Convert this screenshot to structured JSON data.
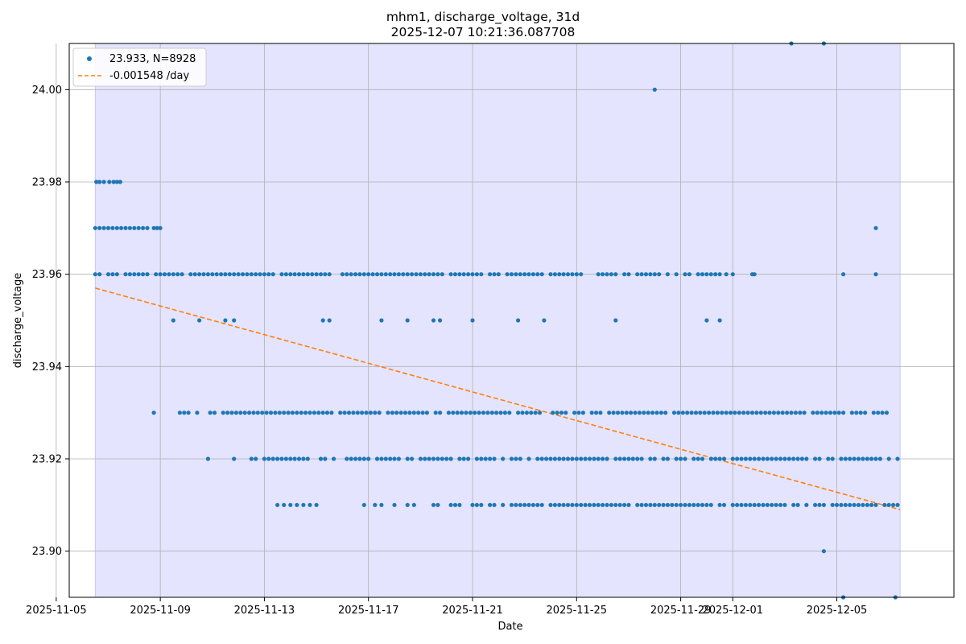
{
  "chart_data": {
    "type": "scatter",
    "title": "mhm1, discharge_voltage, 31d",
    "subtitle": "2025-12-07 10:21:36.087708",
    "xlabel": "Date",
    "ylabel": "discharge_voltage",
    "x_range": [
      "2025-11-05 12:00",
      "2025-12-09 12:00"
    ],
    "ylim": [
      23.89,
      24.01
    ],
    "x_ticks": [
      "2025-11-05",
      "2025-11-09",
      "2025-11-13",
      "2025-11-17",
      "2025-11-21",
      "2025-11-25",
      "2025-11-29",
      "2025-12-01",
      "2025-12-05"
    ],
    "y_ticks": [
      "23.90",
      "23.92",
      "23.94",
      "23.96",
      "23.98",
      "24.00"
    ],
    "grid": true,
    "legend_position": "top-left",
    "highlight_span": [
      "2025-11-06 12:00",
      "2025-12-07 10:21"
    ],
    "colors": {
      "points": "#1f77b4",
      "trend": "#ff7f0e",
      "span": "#e4e4fe",
      "span_edge": "#c8c8f0",
      "grid": "#b0b0b0"
    },
    "series": [
      {
        "name": "23.933, N=8928",
        "kind": "scatter",
        "levels": [
          {
            "y": 23.96,
            "x_start": "2025-11-06 12:00",
            "x_end": "2025-11-30 12:00",
            "density": "dense"
          },
          {
            "y": 23.93,
            "x_start": "2025-11-09 18:00",
            "x_end": "2025-12-07 00:00",
            "density": "dense"
          },
          {
            "y": 23.92,
            "x_start": "2025-11-12 12:00",
            "x_end": "2025-12-07 10:00",
            "density": "dense"
          },
          {
            "y": 23.91,
            "x_start": "2025-11-19 12:00",
            "x_end": "2025-12-07 10:21",
            "density": "dense"
          },
          {
            "y": 23.97,
            "x_start": "2025-11-06 12:00",
            "x_end": "2025-11-08 12:00",
            "density": "dense"
          }
        ],
        "sparse_points": [
          {
            "x": "2025-11-06 13:00",
            "y": 23.98
          },
          {
            "x": "2025-11-06 16:00",
            "y": 23.98
          },
          {
            "x": "2025-11-06 20:00",
            "y": 23.98
          },
          {
            "x": "2025-11-07 01:00",
            "y": 23.98
          },
          {
            "x": "2025-11-07 05:00",
            "y": 23.98
          },
          {
            "x": "2025-11-07 08:00",
            "y": 23.98
          },
          {
            "x": "2025-11-07 11:00",
            "y": 23.98
          },
          {
            "x": "2025-11-08 18:00",
            "y": 23.97
          },
          {
            "x": "2025-11-08 21:00",
            "y": 23.97
          },
          {
            "x": "2025-11-09 00:00",
            "y": 23.97
          },
          {
            "x": "2025-11-08 18:00",
            "y": 23.93
          },
          {
            "x": "2025-11-09 12:00",
            "y": 23.95
          },
          {
            "x": "2025-11-10 12:00",
            "y": 23.95
          },
          {
            "x": "2025-11-11 12:00",
            "y": 23.95
          },
          {
            "x": "2025-11-11 20:00",
            "y": 23.95
          },
          {
            "x": "2025-11-15 06:00",
            "y": 23.95
          },
          {
            "x": "2025-11-15 12:00",
            "y": 23.95
          },
          {
            "x": "2025-11-17 12:00",
            "y": 23.95
          },
          {
            "x": "2025-11-18 12:00",
            "y": 23.95
          },
          {
            "x": "2025-11-19 12:00",
            "y": 23.95
          },
          {
            "x": "2025-11-19 18:00",
            "y": 23.95
          },
          {
            "x": "2025-11-21 00:00",
            "y": 23.95
          },
          {
            "x": "2025-11-22 18:00",
            "y": 23.95
          },
          {
            "x": "2025-11-23 18:00",
            "y": 23.95
          },
          {
            "x": "2025-11-26 12:00",
            "y": 23.95
          },
          {
            "x": "2025-11-30 00:00",
            "y": 23.95
          },
          {
            "x": "2025-11-30 12:00",
            "y": 23.95
          },
          {
            "x": "2025-11-28 00:00",
            "y": 24.0
          },
          {
            "x": "2025-12-03 06:00",
            "y": 24.01
          },
          {
            "x": "2025-12-04 12:00",
            "y": 24.01
          },
          {
            "x": "2025-12-04 12:00",
            "y": 23.9
          },
          {
            "x": "2025-12-05 06:00",
            "y": 23.89
          },
          {
            "x": "2025-12-07 06:00",
            "y": 23.89
          },
          {
            "x": "2025-12-06 12:00",
            "y": 23.97
          },
          {
            "x": "2025-12-05 06:00",
            "y": 23.96
          },
          {
            "x": "2025-12-06 12:00",
            "y": 23.96
          },
          {
            "x": "2025-12-01 00:00",
            "y": 23.96
          },
          {
            "x": "2025-12-01 18:00",
            "y": 23.96
          },
          {
            "x": "2025-12-01 20:00",
            "y": 23.96
          },
          {
            "x": "2025-11-30 18:00",
            "y": 23.96
          },
          {
            "x": "2025-11-10 20:00",
            "y": 23.92
          },
          {
            "x": "2025-11-11 20:00",
            "y": 23.92
          },
          {
            "x": "2025-11-13 12:00",
            "y": 23.91
          },
          {
            "x": "2025-11-13 18:00",
            "y": 23.91
          },
          {
            "x": "2025-11-14 00:00",
            "y": 23.91
          },
          {
            "x": "2025-11-14 06:00",
            "y": 23.91
          },
          {
            "x": "2025-11-14 12:00",
            "y": 23.91
          },
          {
            "x": "2025-11-14 18:00",
            "y": 23.91
          },
          {
            "x": "2025-11-15 00:00",
            "y": 23.91
          },
          {
            "x": "2025-11-16 20:00",
            "y": 23.91
          },
          {
            "x": "2025-11-17 06:00",
            "y": 23.91
          },
          {
            "x": "2025-11-17 12:00",
            "y": 23.91
          },
          {
            "x": "2025-11-18 00:00",
            "y": 23.91
          },
          {
            "x": "2025-11-18 12:00",
            "y": 23.91
          },
          {
            "x": "2025-11-18 18:00",
            "y": 23.91
          }
        ]
      },
      {
        "name": "-0.001548 /day",
        "kind": "trend",
        "slope_per_day": -0.001548,
        "x": [
          "2025-11-06 12:00",
          "2025-12-07 10:21"
        ],
        "y": [
          23.957,
          23.909
        ]
      }
    ]
  }
}
